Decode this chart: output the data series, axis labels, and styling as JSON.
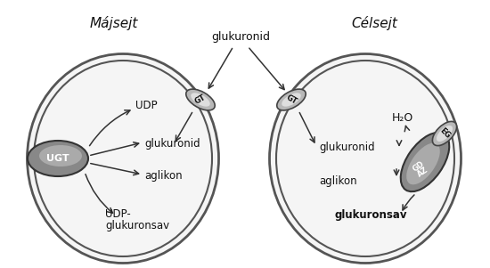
{
  "bg_color": "#ffffff",
  "cell_fill": "#f0f0f0",
  "title_left": "Májsejt",
  "title_right": "Célsejt",
  "glukuronid_top_label": "glukuronid"
}
